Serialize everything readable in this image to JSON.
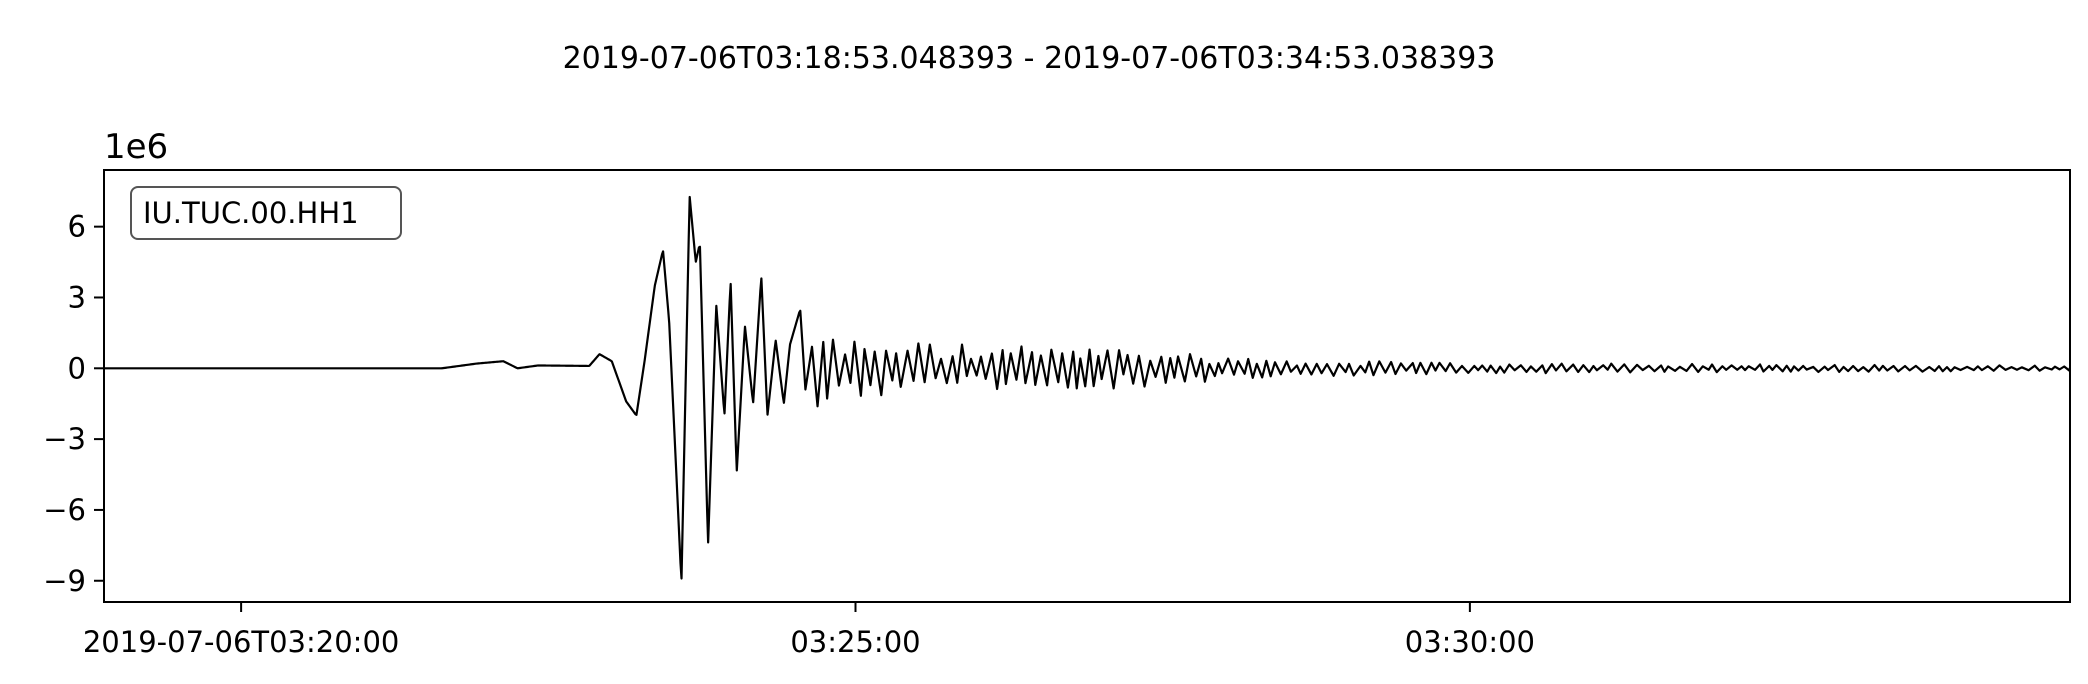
{
  "chart_data": {
    "type": "line",
    "title": "2019-07-06T03:18:53.048393  -  2019-07-06T03:34:53.038393",
    "xlabel": "",
    "ylabel": "",
    "x_range": [
      "2019-07-06T03:18:53.048393",
      "2019-07-06T03:34:53.038393"
    ],
    "x_ticks": [
      {
        "time": "2019-07-06T03:20:00",
        "label": "2019-07-06T03:20:00"
      },
      {
        "time": "2019-07-06T03:25:00",
        "label": "03:25:00"
      },
      {
        "time": "2019-07-06T03:30:00",
        "label": "03:30:00"
      }
    ],
    "y_scale_label": "1e6",
    "ylim": [
      -9.9,
      8.4
    ],
    "y_ticks": [
      {
        "value": 6,
        "label": "6"
      },
      {
        "value": 3,
        "label": "3"
      },
      {
        "value": 0,
        "label": "0"
      },
      {
        "value": -3,
        "label": "−3"
      },
      {
        "value": -6,
        "label": "−6"
      },
      {
        "value": -9,
        "label": "−9"
      }
    ],
    "grid": false,
    "legend_position": "top-left",
    "series": [
      {
        "name": "IU.TUC.00.HH1",
        "color": "#000000",
        "envelope": [
          [
            "2019-07-06T03:18:53",
            0.0
          ],
          [
            "2019-07-06T03:21:38",
            0.02
          ],
          [
            "2019-07-06T03:21:42",
            0.1
          ],
          [
            "2019-07-06T03:22:08",
            0.2
          ],
          [
            "2019-07-06T03:22:28",
            0.3
          ],
          [
            "2019-07-06T03:22:50",
            0.55
          ],
          [
            "2019-07-06T03:23:05",
            1.2
          ],
          [
            "2019-07-06T03:23:15",
            3.0
          ],
          [
            "2019-07-06T03:23:35",
            7.5
          ],
          [
            "2019-07-06T03:23:55",
            6.0
          ],
          [
            "2019-07-06T03:24:15",
            3.2
          ],
          [
            "2019-07-06T03:24:45",
            1.4
          ],
          [
            "2019-07-06T03:26:00",
            1.0
          ],
          [
            "2019-07-06T03:27:30",
            0.8
          ],
          [
            "2019-07-06T03:28:15",
            0.4
          ],
          [
            "2019-07-06T03:30:00",
            0.22
          ],
          [
            "2019-07-06T03:32:00",
            0.18
          ],
          [
            "2019-07-06T03:34:53",
            0.12
          ]
        ],
        "waypoints": [
          [
            "2019-07-06T03:18:53",
            0.0
          ],
          [
            "2019-07-06T03:21:38",
            0.0
          ],
          [
            "2019-07-06T03:21:55",
            0.2
          ],
          [
            "2019-07-06T03:22:08",
            0.3
          ],
          [
            "2019-07-06T03:22:15",
            0.0
          ],
          [
            "2019-07-06T03:22:25",
            0.12
          ],
          [
            "2019-07-06T03:22:50",
            0.1
          ],
          [
            "2019-07-06T03:22:55",
            0.6
          ],
          [
            "2019-07-06T03:23:01",
            0.3
          ],
          [
            "2019-07-06T03:23:08",
            -1.4
          ],
          [
            "2019-07-06T03:23:13",
            -2.0
          ],
          [
            "2019-07-06T03:23:17",
            0.3
          ],
          [
            "2019-07-06T03:23:22",
            3.5
          ],
          [
            "2019-07-06T03:23:26",
            5.0
          ],
          [
            "2019-07-06T03:23:29",
            2.0
          ],
          [
            "2019-07-06T03:23:32",
            -3.5
          ],
          [
            "2019-07-06T03:23:35",
            -9.1
          ],
          [
            "2019-07-06T03:23:39",
            7.3
          ],
          [
            "2019-07-06T03:23:42",
            4.5
          ],
          [
            "2019-07-06T03:23:44",
            5.3
          ],
          [
            "2019-07-06T03:23:48",
            -7.5
          ],
          [
            "2019-07-06T03:23:52",
            2.7
          ],
          [
            "2019-07-06T03:23:56",
            -2.0
          ],
          [
            "2019-07-06T03:23:59",
            3.7
          ],
          [
            "2019-07-06T03:24:02",
            -4.4
          ],
          [
            "2019-07-06T03:24:06",
            1.8
          ],
          [
            "2019-07-06T03:24:10",
            -1.5
          ],
          [
            "2019-07-06T03:24:14",
            3.9
          ],
          [
            "2019-07-06T03:24:17",
            -2.0
          ],
          [
            "2019-07-06T03:24:21",
            1.2
          ],
          [
            "2019-07-06T03:24:25",
            -1.5
          ],
          [
            "2019-07-06T03:24:28",
            1.0
          ],
          [
            "2019-07-06T03:24:33",
            2.5
          ],
          [
            "2019-07-06T03:24:36",
            -1.5
          ]
        ],
        "oscillation_period_s": 4.5
      }
    ]
  }
}
